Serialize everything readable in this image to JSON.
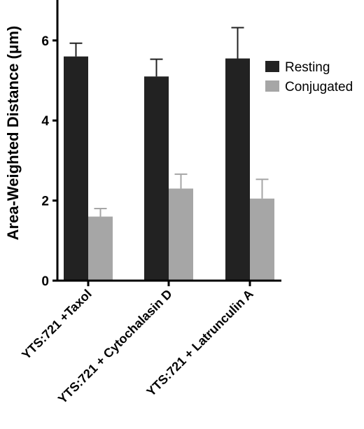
{
  "chart_data": {
    "type": "bar",
    "ylabel": "Area-Weighted Distance (μm)",
    "ylim": [
      0,
      7
    ],
    "yticks": [
      0,
      2,
      4,
      6
    ],
    "grid": false,
    "legend_position": "right",
    "categories": [
      "YTS:721 +Taxol",
      "YTS:721 + Cytochalasin D",
      "YTS:721 + Latrunculin A"
    ],
    "series": [
      {
        "name": "Resting",
        "color": "#222222",
        "values": [
          5.6,
          5.1,
          5.55
        ],
        "errors": [
          0.33,
          0.43,
          0.77
        ]
      },
      {
        "name": "Conjugated",
        "color": "#a6a6a6",
        "values": [
          1.6,
          2.3,
          2.05
        ],
        "errors": [
          0.2,
          0.36,
          0.48
        ]
      }
    ]
  }
}
